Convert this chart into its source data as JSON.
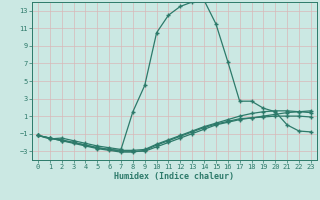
{
  "xlabel": "Humidex (Indice chaleur)",
  "bg_color": "#cbe8e3",
  "grid_color": "#c0d8d4",
  "line_color": "#2d7a6a",
  "xlim": [
    -0.5,
    23.5
  ],
  "ylim": [
    -4,
    14
  ],
  "xticks": [
    0,
    1,
    2,
    3,
    4,
    5,
    6,
    7,
    8,
    9,
    10,
    11,
    12,
    13,
    14,
    15,
    16,
    17,
    18,
    19,
    20,
    21,
    22,
    23
  ],
  "yticks": [
    -3,
    -1,
    1,
    3,
    5,
    7,
    9,
    11,
    13
  ],
  "line1_x": [
    0,
    1,
    2,
    3,
    4,
    5,
    6,
    7,
    8,
    9,
    10,
    11,
    12,
    13,
    14,
    15,
    16,
    17,
    18,
    19,
    20,
    21,
    22,
    23
  ],
  "line1_y": [
    -1.2,
    -1.5,
    -1.7,
    -2.0,
    -2.3,
    -2.6,
    -2.8,
    -3.0,
    -3.0,
    -3.0,
    -2.5,
    -2.0,
    -1.5,
    -1.0,
    -0.5,
    0.0,
    0.3,
    0.6,
    0.8,
    1.0,
    1.2,
    1.4,
    1.5,
    1.6
  ],
  "line2_x": [
    0,
    1,
    2,
    3,
    4,
    5,
    6,
    7,
    8,
    9,
    10,
    11,
    12,
    13,
    14,
    15,
    16,
    17,
    18,
    19,
    20,
    21,
    22,
    23
  ],
  "line2_y": [
    -1.2,
    -1.5,
    -1.8,
    -2.0,
    -2.3,
    -2.6,
    -2.8,
    -2.9,
    -2.9,
    -2.8,
    -2.2,
    -1.7,
    -1.2,
    -0.7,
    -0.2,
    0.2,
    0.6,
    1.0,
    1.3,
    1.5,
    1.6,
    1.6,
    1.5,
    1.4
  ],
  "line3_x": [
    0,
    1,
    2,
    3,
    4,
    5,
    6,
    7,
    8,
    9,
    10,
    11,
    12,
    13,
    14,
    15,
    16,
    17,
    18,
    19,
    20,
    21,
    22,
    23
  ],
  "line3_y": [
    -1.2,
    -1.5,
    -1.8,
    -2.1,
    -2.4,
    -2.7,
    -2.9,
    -3.1,
    -3.1,
    -2.9,
    -2.3,
    -1.8,
    -1.3,
    -0.8,
    -0.3,
    0.1,
    0.4,
    0.7,
    0.8,
    0.9,
    1.0,
    1.0,
    1.0,
    0.9
  ],
  "line4_x": [
    0,
    1,
    2,
    3,
    4,
    5,
    6,
    7,
    8,
    9,
    10,
    11,
    12,
    13,
    14,
    15,
    16,
    17,
    18,
    19,
    20,
    21,
    22,
    23
  ],
  "line4_y": [
    -1.2,
    -1.6,
    -1.5,
    -1.8,
    -2.1,
    -2.4,
    -2.6,
    -2.8,
    1.5,
    4.5,
    10.5,
    12.5,
    13.5,
    14.0,
    14.2,
    11.5,
    7.2,
    2.7,
    2.7,
    1.9,
    1.5,
    0.0,
    -0.7,
    -0.8
  ]
}
